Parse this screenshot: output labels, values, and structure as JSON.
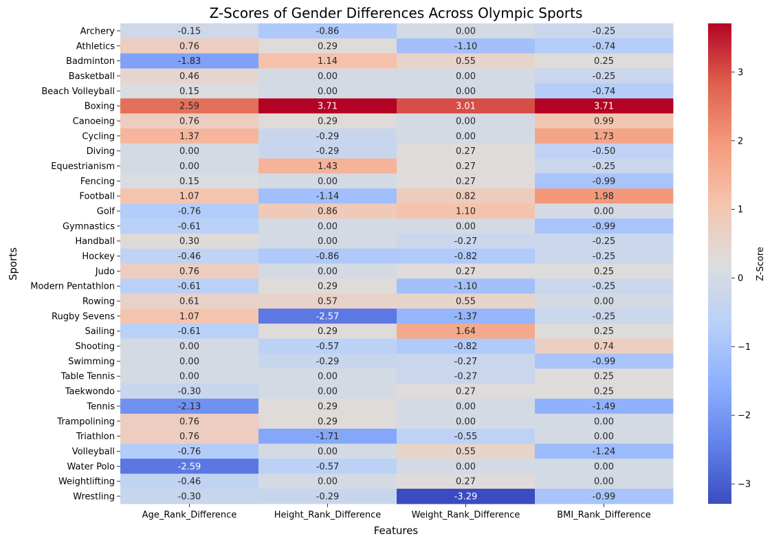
{
  "chart_data": {
    "type": "heatmap",
    "title": "Z-Scores of Gender Differences Across Olympic Sports",
    "xlabel": "Features",
    "ylabel": "Sports",
    "colorbar_label": "Z-Score",
    "colormap": "coolwarm",
    "vmin": -3.29,
    "vmax": 3.71,
    "colorbar_ticks": [
      "−3",
      "−2",
      "−1",
      "0",
      "1",
      "2",
      "3"
    ],
    "colorbar_tick_values": [
      -3,
      -2,
      -1,
      0,
      1,
      2,
      3
    ],
    "columns": [
      "Age_Rank_Difference",
      "Height_Rank_Difference",
      "Weight_Rank_Difference",
      "BMI_Rank_Difference"
    ],
    "rows": [
      "Archery",
      "Athletics",
      "Badminton",
      "Basketball",
      "Beach Volleyball",
      "Boxing",
      "Canoeing",
      "Cycling",
      "Diving",
      "Equestrianism",
      "Fencing",
      "Football",
      "Golf",
      "Gymnastics",
      "Handball",
      "Hockey",
      "Judo",
      "Modern Pentathlon",
      "Rowing",
      "Rugby Sevens",
      "Sailing",
      "Shooting",
      "Swimming",
      "Table Tennis",
      "Taekwondo",
      "Tennis",
      "Trampolining",
      "Triathlon",
      "Volleyball",
      "Water Polo",
      "Weightlifting",
      "Wrestling"
    ],
    "values": [
      [
        -0.15,
        -0.86,
        0.0,
        -0.25
      ],
      [
        0.76,
        0.29,
        -1.1,
        -0.74
      ],
      [
        -1.83,
        1.14,
        0.55,
        0.25
      ],
      [
        0.46,
        0.0,
        0.0,
        -0.25
      ],
      [
        0.15,
        0.0,
        0.0,
        -0.74
      ],
      [
        2.59,
        3.71,
        3.01,
        3.71
      ],
      [
        0.76,
        0.29,
        0.0,
        0.99
      ],
      [
        1.37,
        -0.29,
        0.0,
        1.73
      ],
      [
        0.0,
        -0.29,
        0.27,
        -0.5
      ],
      [
        0.0,
        1.43,
        0.27,
        -0.25
      ],
      [
        0.15,
        0.0,
        0.27,
        -0.99
      ],
      [
        1.07,
        -1.14,
        0.82,
        1.98
      ],
      [
        -0.76,
        0.86,
        1.1,
        0.0
      ],
      [
        -0.61,
        0.0,
        0.0,
        -0.99
      ],
      [
        0.3,
        0.0,
        -0.27,
        -0.25
      ],
      [
        -0.46,
        -0.86,
        -0.82,
        -0.25
      ],
      [
        0.76,
        0.0,
        0.27,
        0.25
      ],
      [
        -0.61,
        0.29,
        -1.1,
        -0.25
      ],
      [
        0.61,
        0.57,
        0.55,
        0.0
      ],
      [
        1.07,
        -2.57,
        -1.37,
        -0.25
      ],
      [
        -0.61,
        0.29,
        1.64,
        0.25
      ],
      [
        0.0,
        -0.57,
        -0.82,
        0.74
      ],
      [
        0.0,
        -0.29,
        -0.27,
        -0.99
      ],
      [
        0.0,
        0.0,
        -0.27,
        0.25
      ],
      [
        -0.3,
        0.0,
        0.27,
        0.25
      ],
      [
        -2.13,
        0.29,
        0.0,
        -1.49
      ],
      [
        0.76,
        0.29,
        0.0,
        0.0
      ],
      [
        0.76,
        -1.71,
        -0.55,
        0.0
      ],
      [
        -0.76,
        0.0,
        0.55,
        -1.24
      ],
      [
        -2.59,
        -0.57,
        0.0,
        0.0
      ],
      [
        -0.46,
        0.0,
        0.27,
        0.0
      ],
      [
        -0.3,
        -0.29,
        -3.29,
        -0.99
      ]
    ]
  }
}
